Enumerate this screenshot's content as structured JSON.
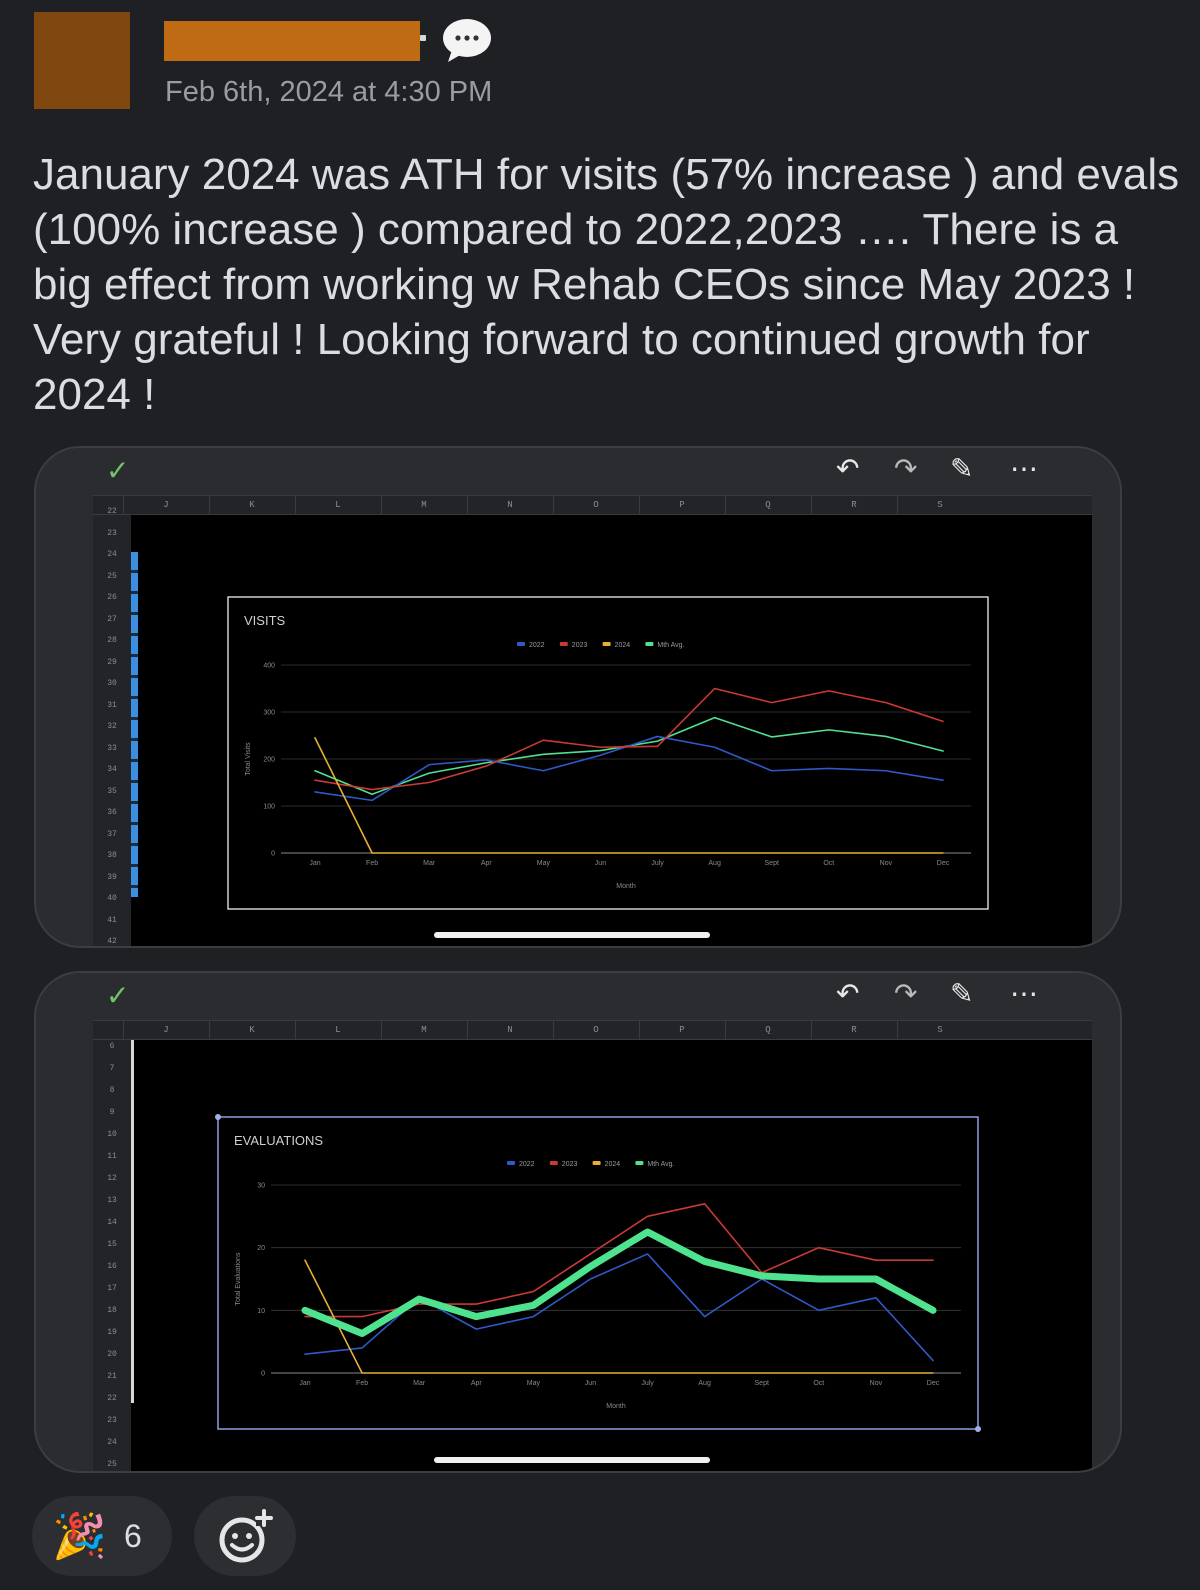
{
  "post": {
    "timestamp": "Feb 6th, 2024 at 4:30 PM",
    "message": "January 2024 was ATH for visits (57% increase ) and evals (100% increase ) compared to 2022,2023 …. There is a big effect from working w Rehab CEOs since May 2023 ! Very grateful ! Looking forward to continued growth for 2024 !"
  },
  "sheet1": {
    "columns": [
      "J",
      "K",
      "L",
      "M",
      "N",
      "O",
      "P",
      "Q",
      "R",
      "S"
    ],
    "rows": [
      "22",
      "23",
      "24",
      "25",
      "26",
      "27",
      "28",
      "29",
      "30",
      "31",
      "32",
      "33",
      "34",
      "35",
      "36",
      "37",
      "38",
      "39",
      "40",
      "41",
      "42"
    ]
  },
  "sheet2": {
    "columns": [
      "J",
      "K",
      "L",
      "M",
      "N",
      "O",
      "P",
      "Q",
      "R",
      "S"
    ],
    "rows": [
      "6",
      "7",
      "8",
      "9",
      "10",
      "11",
      "12",
      "13",
      "14",
      "15",
      "16",
      "17",
      "18",
      "19",
      "20",
      "21",
      "22",
      "23",
      "24",
      "25"
    ]
  },
  "toolbar": {
    "check_icon": "checkmark-icon",
    "undo_icon": "undo-icon",
    "redo_icon": "redo-icon",
    "edit_icon": "pencil-icon",
    "more_icon": "more-icon"
  },
  "reactions": {
    "party_emoji": "🎉",
    "party_count": "6"
  },
  "colors": {
    "series_2022": "#2f59c9",
    "series_2023": "#c93a33",
    "series_2024": "#e8b030",
    "series_avg": "#4fe28f"
  },
  "chart_data": [
    {
      "type": "line",
      "title": "VISITS",
      "xlabel": "Month",
      "ylabel": "Total Visits",
      "ylim": [
        0,
        400
      ],
      "yticks": [
        0,
        100,
        200,
        300,
        400
      ],
      "categories": [
        "Jan",
        "Feb",
        "Mar",
        "Apr",
        "May",
        "Jun",
        "July",
        "Aug",
        "Sept",
        "Oct",
        "Nov",
        "Dec"
      ],
      "legend": "top-center",
      "grid": true,
      "series": [
        {
          "name": "2022",
          "values": [
            130,
            112,
            188,
            198,
            175,
            208,
            248,
            225,
            175,
            180,
            175,
            155
          ]
        },
        {
          "name": "2023",
          "values": [
            155,
            135,
            150,
            185,
            240,
            225,
            227,
            350,
            320,
            345,
            320,
            280
          ]
        },
        {
          "name": "2024",
          "values": [
            245,
            0,
            0,
            0,
            0,
            0,
            0,
            0,
            0,
            0,
            0,
            0
          ]
        },
        {
          "name": "Mth Avg.",
          "values": [
            175,
            125,
            170,
            192,
            210,
            218,
            238,
            288,
            247,
            262,
            248,
            217
          ]
        }
      ]
    },
    {
      "type": "line",
      "title": "EVALUATIONS",
      "xlabel": "Month",
      "ylabel": "Total Evaluations",
      "ylim": [
        0,
        30
      ],
      "yticks": [
        0,
        10,
        20,
        30
      ],
      "categories": [
        "Jan",
        "Feb",
        "Mar",
        "Apr",
        "May",
        "Jun",
        "July",
        "Aug",
        "Sept",
        "Oct",
        "Nov",
        "Dec"
      ],
      "legend": "top-center",
      "grid": true,
      "series": [
        {
          "name": "2022",
          "values": [
            3,
            4,
            12,
            7,
            9,
            15,
            19,
            9,
            15,
            10,
            12,
            2
          ]
        },
        {
          "name": "2023",
          "values": [
            9,
            9,
            11,
            11,
            13,
            19,
            25,
            27,
            16,
            20,
            18,
            18
          ]
        },
        {
          "name": "2024",
          "values": [
            18,
            0,
            0,
            0,
            0,
            0,
            0,
            0,
            0,
            0,
            0,
            0
          ]
        },
        {
          "name": "Mth Avg.",
          "values": [
            10,
            6.3,
            11.8,
            9,
            10.8,
            17,
            22.5,
            17.8,
            15.5,
            15,
            15,
            10
          ]
        }
      ]
    }
  ]
}
